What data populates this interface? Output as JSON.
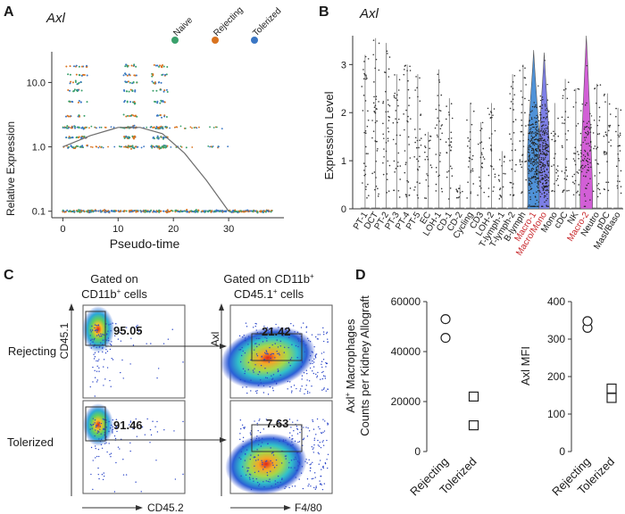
{
  "figure": {
    "panel_letters": [
      "A",
      "B",
      "C",
      "D"
    ]
  },
  "chart_data": [
    {
      "panel": "A",
      "type": "scatter",
      "title": "Axl",
      "xlabel": "Pseudo-time",
      "ylabel": "Relative Expression",
      "yscale": "log",
      "xlim": [
        -2,
        40
      ],
      "ylim": [
        0.09,
        30
      ],
      "x_ticks": [
        0,
        10,
        20,
        30
      ],
      "y_ticks": [
        "0.1",
        "1.0",
        "10.0"
      ],
      "y_tick_values": [
        0.1,
        1.0,
        10.0
      ],
      "legend": {
        "placement": "top-right",
        "entries": [
          {
            "name": "Naive",
            "color": "#3aa06b"
          },
          {
            "name": "Rejecting",
            "color": "#d9731f"
          },
          {
            "name": "Tolerized",
            "color": "#3a76c4"
          }
        ]
      },
      "clusters_x": [
        [
          0.5,
          4.5
        ],
        [
          11,
          13.5
        ],
        [
          16,
          19
        ],
        [
          30.5,
          38
        ]
      ],
      "trend_line": {
        "x": [
          0,
          5,
          10,
          14,
          18,
          22,
          26,
          30
        ],
        "y": [
          1.0,
          1.5,
          2.0,
          2.0,
          1.6,
          0.8,
          0.3,
          0.1
        ]
      }
    },
    {
      "panel": "B",
      "type": "violin",
      "title": "Axl",
      "ylabel": "Expression Level",
      "ylim": [
        0,
        3.6
      ],
      "y_ticks": [
        0,
        1,
        2,
        3
      ],
      "categories": [
        "PT-1",
        "DCT",
        "PT-2",
        "PT-3",
        "PT-4",
        "PT-5",
        "EC",
        "LOH-1",
        "CD-1",
        "CD-2",
        "Cycling",
        "CD3",
        "LOH-2",
        "T-lymph-1",
        "T-lymph-2",
        "B-lymph",
        "Macro-1",
        "Macro/Mono",
        "Mono",
        "cDC",
        "NK",
        "Macro-2",
        "Neutro",
        "pDC",
        "Mast/Baso"
      ],
      "highlighted_categories": [
        "Macro-1",
        "Macro/Mono",
        "Macro-2"
      ],
      "highlight_color": "#c8282c",
      "max_values": [
        3.2,
        3.55,
        3.45,
        2.8,
        3.0,
        2.8,
        1.6,
        2.9,
        2.3,
        0.5,
        2.2,
        1.8,
        2.2,
        1.2,
        2.8,
        3.0,
        3.3,
        3.25,
        2.2,
        2.7,
        2.5,
        3.6,
        2.6,
        2.4,
        2.1
      ],
      "violin_colors": {
        "Macro-1": "#4f92d8",
        "Macro/Mono": "#7d7fe6",
        "Macro-2": "#d25fd6"
      }
    },
    {
      "panel": "C",
      "type": "flow-cytometry",
      "columns": [
        {
          "title_lines": [
            "Gated on",
            "CD11b",
            " cells"
          ],
          "xlabel": "CD45.2",
          "ylabel": "CD45.1"
        },
        {
          "title_lines": [
            "Gated on CD11b",
            "CD45.1",
            " cells"
          ],
          "xlabel": "F4/80",
          "ylabel": "Axl"
        }
      ],
      "superscript_plus": "+",
      "rows": [
        {
          "label": "Rejecting",
          "gate_percentages": [
            "95.05",
            "21.42"
          ]
        },
        {
          "label": "Tolerized",
          "gate_percentages": [
            "91.46",
            "7.63"
          ]
        }
      ]
    },
    {
      "panel": "D",
      "type": "scatter",
      "subplots": [
        {
          "ylabel_lines": [
            "Axl",
            "Macrophages",
            "Counts per Kidney Allograft"
          ],
          "ylabel_sup": "+",
          "ylim": [
            0,
            60000
          ],
          "y_ticks": [
            0,
            20000,
            40000,
            60000
          ],
          "categories": [
            "Rejecting",
            "Tolerized"
          ],
          "series": [
            {
              "name": "Rejecting",
              "marker": "circle",
              "values": [
                53000,
                45500
              ]
            },
            {
              "name": "Tolerized",
              "marker": "square",
              "values": [
                22000,
                10500
              ]
            }
          ]
        },
        {
          "ylabel": "Axl MFI",
          "ylim": [
            0,
            400
          ],
          "y_ticks": [
            0,
            100,
            200,
            300,
            400
          ],
          "categories": [
            "Rejecting",
            "Tolerized"
          ],
          "series": [
            {
              "name": "Rejecting",
              "marker": "circle",
              "values": [
                330,
                348
              ]
            },
            {
              "name": "Tolerized",
              "marker": "square",
              "values": [
                168,
                143
              ]
            }
          ]
        }
      ]
    }
  ]
}
